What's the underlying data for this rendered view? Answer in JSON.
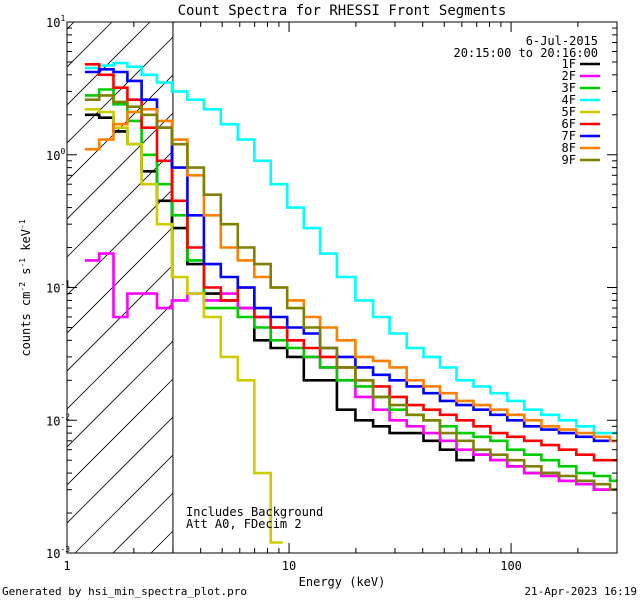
{
  "chart_data": {
    "type": "line",
    "title": "Count Spectra for RHESSI Front Segments",
    "xlabel": "Energy (keV)",
    "ylabel_parts": {
      "base": "counts cm",
      "exp1": "-2",
      "mid1": " s",
      "exp2": "-1",
      "mid2": " keV",
      "exp3": "-1"
    },
    "ylabel": "counts cm^-2 s^-1 keV^-1",
    "xscale": "log",
    "yscale": "log",
    "xlim": [
      1,
      300
    ],
    "ylim": [
      0.001,
      10
    ],
    "x_ticks": [
      {
        "value": 1,
        "label": "1"
      },
      {
        "value": 10,
        "label": "10"
      },
      {
        "value": 100,
        "label": "100"
      }
    ],
    "y_ticks": [
      {
        "value": 0.001,
        "base": "10",
        "exp": "-3"
      },
      {
        "value": 0.01,
        "base": "10",
        "exp": "-2"
      },
      {
        "value": 0.1,
        "base": "10",
        "exp": "-1"
      },
      {
        "value": 1,
        "base": "10",
        "exp": "0"
      },
      {
        "value": 10,
        "base": "10",
        "exp": "1"
      }
    ],
    "hatched_region_keV": [
      1,
      3
    ],
    "annotations": {
      "date": "6-Jul-2015",
      "time_range": "20:15:00 to 20:16:00",
      "note1": "Includes Background",
      "note2": "Att A0, FDecim 2"
    },
    "series": [
      {
        "name": "1F",
        "color": "#000000",
        "x": [
          1.3,
          1.5,
          1.75,
          2.0,
          2.35,
          2.75,
          3.2,
          3.8,
          4.5,
          5.4,
          6.4,
          7.6,
          9,
          10.7,
          12.7,
          15,
          18,
          22,
          26,
          31,
          37,
          44,
          52,
          62,
          74,
          88,
          105,
          125,
          150,
          180,
          215,
          260,
          300
        ],
        "y": [
          2.0,
          1.9,
          1.5,
          1.2,
          0.75,
          0.45,
          0.28,
          0.15,
          0.09,
          0.08,
          0.07,
          0.04,
          0.035,
          0.03,
          0.02,
          0.02,
          0.012,
          0.01,
          0.009,
          0.008,
          0.008,
          0.007,
          0.006,
          0.005,
          0.0055,
          0.005,
          0.0045,
          0.004,
          0.004,
          0.0035,
          0.0035,
          0.003,
          0.003
        ]
      },
      {
        "name": "2F",
        "color": "#ff00ff",
        "x": [
          1.3,
          1.5,
          1.75,
          2.0,
          2.35,
          2.75,
          3.2,
          3.8,
          4.5,
          5.4,
          6.4,
          7.6,
          9,
          10.7,
          12.7,
          15,
          18,
          22,
          26,
          31,
          37,
          44,
          52,
          62,
          74,
          88,
          105,
          125,
          150,
          180,
          215,
          260,
          300
        ],
        "y": [
          0.16,
          0.18,
          0.06,
          0.09,
          0.09,
          0.07,
          0.08,
          0.09,
          0.08,
          0.09,
          0.07,
          0.06,
          0.05,
          0.04,
          0.03,
          0.025,
          0.02,
          0.015,
          0.012,
          0.01,
          0.009,
          0.008,
          0.007,
          0.006,
          0.0055,
          0.005,
          0.0045,
          0.004,
          0.0038,
          0.0035,
          0.0033,
          0.003,
          0.003
        ]
      },
      {
        "name": "3F",
        "color": "#00cc00",
        "x": [
          1.3,
          1.5,
          1.75,
          2.0,
          2.35,
          2.75,
          3.2,
          3.8,
          4.5,
          5.4,
          6.4,
          7.6,
          9,
          10.7,
          12.7,
          15,
          18,
          22,
          26,
          31,
          37,
          44,
          52,
          62,
          74,
          88,
          105,
          125,
          150,
          180,
          215,
          260,
          300
        ],
        "y": [
          2.8,
          3.1,
          2.4,
          1.8,
          1.0,
          0.6,
          0.35,
          0.16,
          0.07,
          0.07,
          0.06,
          0.05,
          0.04,
          0.035,
          0.03,
          0.025,
          0.02,
          0.018,
          0.015,
          0.012,
          0.011,
          0.01,
          0.009,
          0.008,
          0.0075,
          0.007,
          0.006,
          0.0055,
          0.005,
          0.0045,
          0.004,
          0.0038,
          0.0035
        ]
      },
      {
        "name": "4F",
        "color": "#00ffff",
        "x": [
          1.3,
          1.5,
          1.75,
          2.0,
          2.35,
          2.75,
          3.2,
          3.8,
          4.5,
          5.4,
          6.4,
          7.6,
          9,
          10.7,
          12.7,
          15,
          18,
          22,
          26,
          31,
          37,
          44,
          52,
          62,
          74,
          88,
          105,
          125,
          150,
          180,
          215,
          260,
          300
        ],
        "y": [
          4.5,
          4.7,
          4.9,
          4.6,
          4.0,
          3.5,
          3.0,
          2.6,
          2.2,
          1.7,
          1.3,
          0.9,
          0.6,
          0.4,
          0.28,
          0.18,
          0.12,
          0.08,
          0.06,
          0.045,
          0.035,
          0.03,
          0.025,
          0.02,
          0.018,
          0.016,
          0.014,
          0.012,
          0.011,
          0.01,
          0.009,
          0.008,
          0.008
        ]
      },
      {
        "name": "5F",
        "color": "#cccc00",
        "x": [
          1.3,
          1.5,
          1.75,
          2.0,
          2.35,
          2.75,
          3.2,
          3.8,
          4.5,
          5.4,
          6.4,
          7.6,
          9
        ],
        "y": [
          2.2,
          2.1,
          1.6,
          1.2,
          0.6,
          0.3,
          0.12,
          0.09,
          0.06,
          0.03,
          0.02,
          0.004,
          0.0012
        ]
      },
      {
        "name": "6F",
        "color": "#ff0000",
        "x": [
          1.3,
          1.5,
          1.75,
          2.0,
          2.35,
          2.75,
          3.2,
          3.8,
          4.5,
          5.4,
          6.4,
          7.6,
          9,
          10.7,
          12.7,
          15,
          18,
          22,
          26,
          31,
          37,
          44,
          52,
          62,
          74,
          88,
          105,
          125,
          150,
          180,
          215,
          260,
          300
        ],
        "y": [
          4.8,
          4.0,
          3.2,
          2.6,
          1.6,
          0.9,
          0.45,
          0.2,
          0.1,
          0.08,
          0.1,
          0.06,
          0.05,
          0.04,
          0.035,
          0.03,
          0.025,
          0.02,
          0.018,
          0.015,
          0.013,
          0.012,
          0.011,
          0.01,
          0.009,
          0.008,
          0.0075,
          0.007,
          0.0065,
          0.006,
          0.0055,
          0.005,
          0.005
        ]
      },
      {
        "name": "7F",
        "color": "#0000ff",
        "x": [
          1.3,
          1.5,
          1.75,
          2.0,
          2.35,
          2.75,
          3.2,
          3.8,
          4.5,
          5.4,
          6.4,
          7.6,
          9,
          10.7,
          12.7,
          15,
          18,
          22,
          26,
          31,
          37,
          44,
          52,
          62,
          74,
          88,
          105,
          125,
          150,
          180,
          215,
          260,
          300
        ],
        "y": [
          4.2,
          4.4,
          4.2,
          3.6,
          2.6,
          1.6,
          0.8,
          0.35,
          0.15,
          0.12,
          0.1,
          0.07,
          0.06,
          0.05,
          0.045,
          0.035,
          0.03,
          0.025,
          0.022,
          0.02,
          0.018,
          0.016,
          0.014,
          0.013,
          0.012,
          0.011,
          0.01,
          0.009,
          0.0085,
          0.008,
          0.0075,
          0.007,
          0.007
        ]
      },
      {
        "name": "8F",
        "color": "#ff8000",
        "x": [
          1.3,
          1.5,
          1.75,
          2.0,
          2.35,
          2.75,
          3.2,
          3.8,
          4.5,
          5.4,
          6.4,
          7.6,
          9,
          10.7,
          12.7,
          15,
          18,
          22,
          26,
          31,
          37,
          44,
          52,
          62,
          74,
          88,
          105,
          125,
          150,
          180,
          215,
          260,
          300
        ],
        "y": [
          1.1,
          1.3,
          1.7,
          2.1,
          2.2,
          1.8,
          1.3,
          0.7,
          0.35,
          0.2,
          0.16,
          0.12,
          0.1,
          0.08,
          0.06,
          0.05,
          0.04,
          0.03,
          0.028,
          0.025,
          0.02,
          0.018,
          0.016,
          0.014,
          0.013,
          0.012,
          0.011,
          0.01,
          0.009,
          0.0085,
          0.008,
          0.0075,
          0.007
        ]
      },
      {
        "name": "9F",
        "color": "#808000",
        "x": [
          1.3,
          1.5,
          1.75,
          2.0,
          2.35,
          2.75,
          3.2,
          3.8,
          4.5,
          5.4,
          6.4,
          7.6,
          9,
          10.7,
          12.7,
          15,
          18,
          22,
          26,
          31,
          37,
          44,
          52,
          62,
          74,
          88,
          105,
          125,
          150,
          180,
          215,
          260,
          300
        ],
        "y": [
          2.6,
          2.8,
          2.5,
          2.3,
          2.0,
          1.6,
          1.2,
          0.8,
          0.5,
          0.3,
          0.2,
          0.15,
          0.1,
          0.07,
          0.05,
          0.035,
          0.025,
          0.02,
          0.015,
          0.013,
          0.011,
          0.01,
          0.008,
          0.007,
          0.006,
          0.0055,
          0.005,
          0.0045,
          0.004,
          0.0038,
          0.0035,
          0.0033,
          0.003
        ]
      }
    ]
  },
  "footer": {
    "left": "Generated by hsi_min_spectra_plot.pro",
    "right": "21-Apr-2023 16:19"
  }
}
